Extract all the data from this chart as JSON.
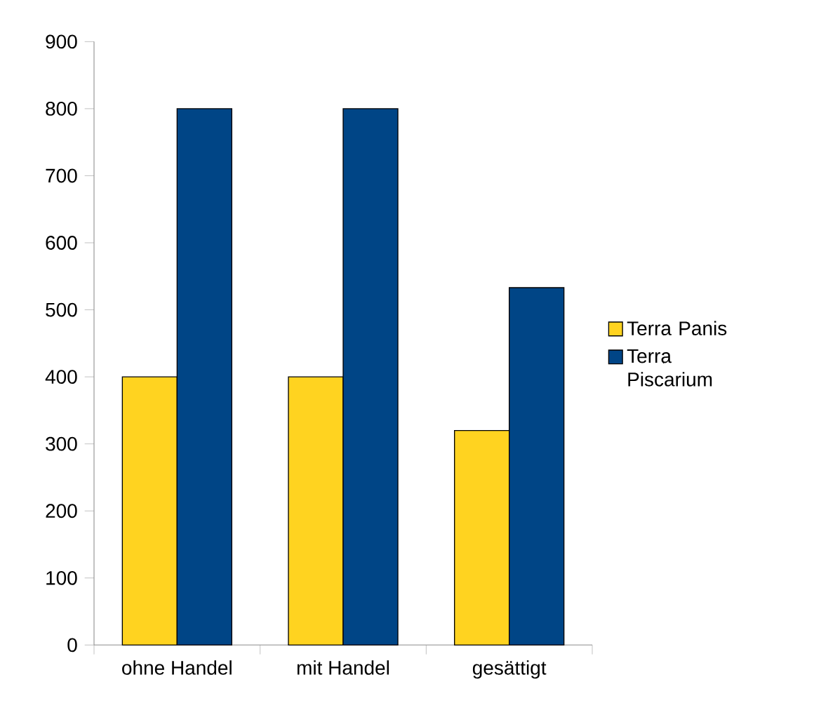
{
  "chart_data": {
    "type": "bar",
    "categories": [
      "ohne Handel",
      "mit Handel",
      "gesättigt"
    ],
    "series": [
      {
        "name": "Terra Panis",
        "color": "#ffd320",
        "values": [
          400,
          400,
          320
        ]
      },
      {
        "name": "Terra Piscarium",
        "color": "#004586",
        "values": [
          800,
          800,
          533
        ]
      }
    ],
    "ylim": [
      0,
      900
    ],
    "yticks": [
      0,
      100,
      200,
      300,
      400,
      500,
      600,
      700,
      800,
      900
    ],
    "grid": false,
    "legend": "right"
  }
}
